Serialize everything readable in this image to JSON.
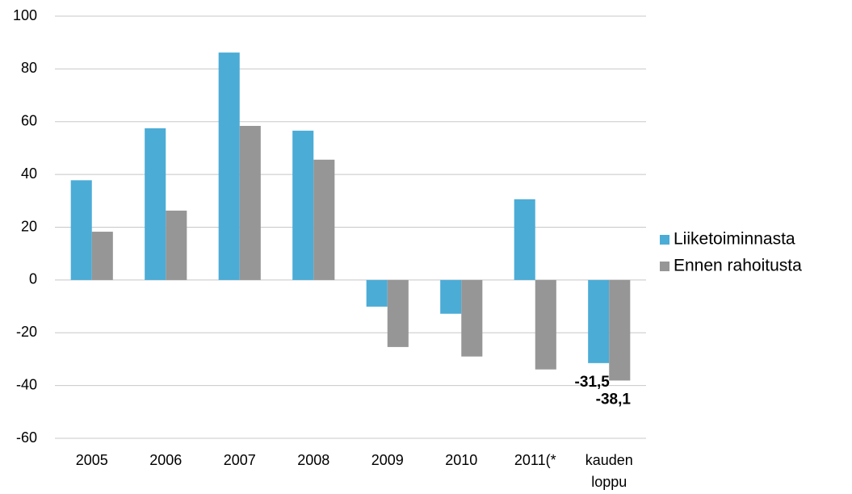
{
  "chart_data": {
    "type": "bar",
    "categories": [
      "2005",
      "2006",
      "2007",
      "2008",
      "2009",
      "2010",
      "2011(*",
      "kauden loppu"
    ],
    "series": [
      {
        "name": "Liiketoiminnasta",
        "color": "#4bacd6",
        "values": [
          37.8,
          57.5,
          86.2,
          56.6,
          -10.1,
          -12.8,
          30.6,
          -31.5
        ],
        "value_labels": [
          null,
          null,
          null,
          null,
          null,
          null,
          null,
          "-31,5"
        ]
      },
      {
        "name": "Ennen rahoitusta",
        "color": "#969696",
        "values": [
          18.3,
          26.3,
          58.4,
          45.6,
          -25.4,
          -29.0,
          -33.9,
          -38.1
        ],
        "value_labels": [
          null,
          null,
          null,
          null,
          null,
          null,
          null,
          "-38,1"
        ]
      }
    ],
    "ylim": [
      -60,
      100
    ],
    "yticks": [
      -60,
      -40,
      -20,
      0,
      20,
      40,
      60,
      80,
      100
    ],
    "grid": true,
    "legend": "right"
  }
}
